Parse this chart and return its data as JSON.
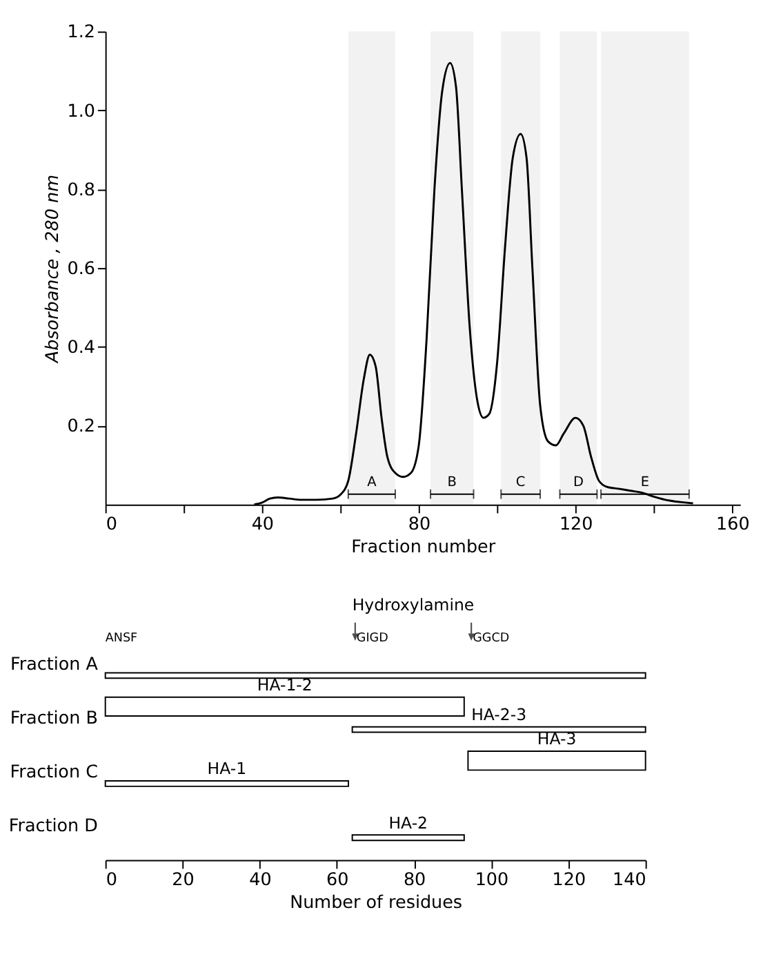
{
  "chart_data": [
    {
      "type": "line",
      "xlabel": "Fraction number",
      "ylabel": "Absorbance , 280 nm",
      "x": [
        38,
        40,
        42,
        44,
        47,
        50,
        54,
        58,
        60,
        62,
        64,
        66,
        67.5,
        69,
        70.5,
        72,
        74,
        76,
        78,
        80,
        82,
        84,
        86,
        88,
        89.5,
        91,
        93,
        95,
        96.5,
        98,
        100,
        102,
        104,
        106,
        107.5,
        109,
        111,
        113,
        115,
        117,
        120,
        122,
        124,
        126,
        128,
        131,
        134,
        137,
        140,
        144,
        148,
        150
      ],
      "series": [
        {
          "color": "#000000",
          "values": [
            0,
            0.005,
            0.015,
            0.018,
            0.015,
            0.012,
            0.012,
            0.015,
            0.025,
            0.06,
            0.18,
            0.32,
            0.38,
            0.35,
            0.22,
            0.12,
            0.08,
            0.07,
            0.08,
            0.15,
            0.42,
            0.8,
            1.05,
            1.12,
            1.06,
            0.8,
            0.45,
            0.26,
            0.22,
            0.23,
            0.36,
            0.65,
            0.88,
            0.94,
            0.88,
            0.6,
            0.25,
            0.16,
            0.15,
            0.18,
            0.22,
            0.2,
            0.12,
            0.06,
            0.045,
            0.04,
            0.035,
            0.03,
            0.02,
            0.01,
            0.005,
            0.003
          ]
        }
      ],
      "xlim": [
        0,
        162
      ],
      "xticks": [
        0,
        {
          "value": 20,
          "label": null
        },
        40,
        {
          "value": 60,
          "label": null
        },
        80,
        {
          "value": 100,
          "label": null
        },
        120,
        {
          "value": 140,
          "label": null
        },
        160
      ],
      "ylim": [
        0,
        1.2
      ],
      "yticks": [
        0.2,
        0.4,
        0.6,
        0.8,
        {
          "value": 1.0,
          "label": "1.0"
        },
        1.2
      ],
      "bands": [
        {
          "axis": "x",
          "from": 62,
          "to": 74,
          "label": "A"
        },
        {
          "axis": "x",
          "from": 83,
          "to": 94,
          "label": "B"
        },
        {
          "axis": "x",
          "from": 101,
          "to": 111,
          "label": "C"
        },
        {
          "axis": "x",
          "from": 116,
          "to": 125.5,
          "label": "D"
        },
        {
          "axis": "x",
          "from": 126.5,
          "to": 149,
          "label": "E"
        }
      ],
      "grid": false,
      "legend": false,
      "marker": "none",
      "line_style": "solid"
    },
    {
      "type": "bar",
      "orientation": "horizontal",
      "xlabel": "Number of residues",
      "categories": [
        "Fraction A",
        "Fraction B",
        "Fraction C",
        "Fraction D"
      ],
      "series": [
        {
          "color": "#000000",
          "base": [
            null,
            0,
            94,
            null
          ],
          "values": [
            null,
            93,
            46,
            null
          ],
          "value_labels": [
            null,
            "HA-1-2",
            "HA-3",
            null
          ]
        },
        {
          "color": "#000000",
          "base": [
            0,
            64,
            0,
            64
          ],
          "values": [
            140,
            76,
            63,
            29
          ],
          "value_labels": [
            null,
            "HA-2-3",
            "HA-1",
            "HA-2"
          ]
        }
      ],
      "xlim": [
        0,
        140
      ],
      "xticks": [
        0,
        20,
        40,
        60,
        80,
        100,
        120,
        140
      ],
      "annotations": [
        "Hydroxylamine",
        "ANSF",
        "GIGD",
        "GGCD"
      ],
      "grid": false,
      "legend": false
    }
  ]
}
